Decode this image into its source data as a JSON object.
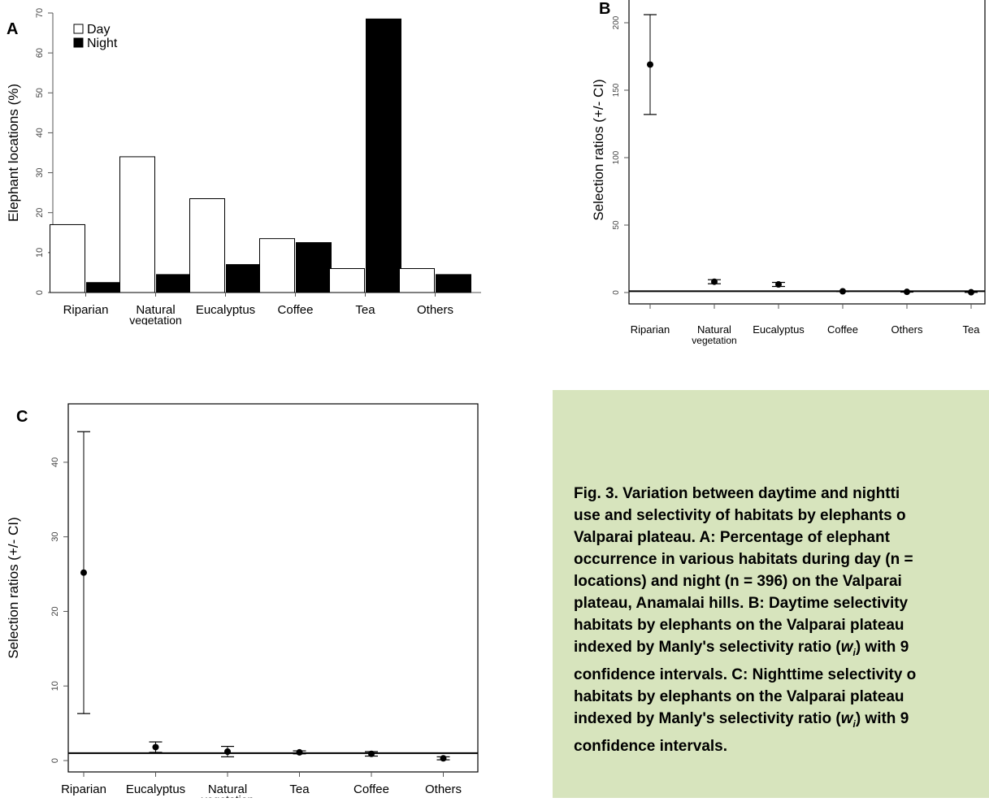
{
  "panels": [
    {
      "label": "A",
      "chart_data": {
        "type": "bar",
        "ylabel": "Elephant locations (%)",
        "xlabel": "",
        "ylim": [
          0,
          70
        ],
        "yticks": [
          0,
          10,
          20,
          30,
          40,
          50,
          60,
          70
        ],
        "categories": [
          "Riparian",
          "Natural vegetation",
          "Eucalyptus",
          "Coffee",
          "Tea",
          "Others"
        ],
        "category_lines": [
          [
            "Riparian"
          ],
          [
            "Natural",
            "vegetation"
          ],
          [
            "Eucalyptus"
          ],
          [
            "Coffee"
          ],
          [
            "Tea"
          ],
          [
            "Others"
          ]
        ],
        "series": [
          {
            "name": "Day",
            "color": "#ffffff",
            "values": [
              17,
              34,
              23.5,
              13.5,
              6,
              6
            ]
          },
          {
            "name": "Night",
            "color": "#000000",
            "values": [
              2.5,
              4.5,
              7,
              12.5,
              68.5,
              4.5
            ]
          }
        ],
        "legend": "top-left"
      }
    },
    {
      "label": "B",
      "chart_data": {
        "type": "scatter",
        "style": "point-with-error-bars",
        "ylabel": "Selection ratios (+/- CI)",
        "ylim": [
          0,
          200
        ],
        "yticks": [
          0,
          50,
          100,
          150,
          200
        ],
        "reference_line": 1,
        "categories": [
          "Riparian",
          "Natural vegetation",
          "Eucalyptus",
          "Coffee",
          "Others",
          "Tea"
        ],
        "category_lines": [
          [
            "Riparian"
          ],
          [
            "Natural",
            "vegetation"
          ],
          [
            "Eucalyptus"
          ],
          [
            "Coffee"
          ],
          [
            "Others"
          ],
          [
            "Tea"
          ]
        ],
        "values": [
          169,
          8,
          6,
          0.9,
          0.5,
          0.2
        ],
        "ci_low": [
          132,
          6.5,
          4.5,
          0.7,
          0.3,
          0.1
        ],
        "ci_high": [
          206,
          9.5,
          7.5,
          1.1,
          0.7,
          0.3
        ]
      }
    },
    {
      "label": "C",
      "chart_data": {
        "type": "scatter",
        "style": "point-with-error-bars",
        "ylabel": "Selection ratios (+/- CI)",
        "ylim": [
          0,
          45
        ],
        "yticks": [
          0,
          10,
          20,
          30,
          40
        ],
        "reference_line": 1,
        "categories": [
          "Riparian",
          "Eucalyptus",
          "Natural vegetation",
          "Tea",
          "Coffee",
          "Others"
        ],
        "category_lines": [
          [
            "Riparian"
          ],
          [
            "Eucalyptus"
          ],
          [
            "Natural",
            "vegetation"
          ],
          [
            "Tea"
          ],
          [
            "Coffee"
          ],
          [
            "Others"
          ]
        ],
        "values": [
          25.2,
          1.8,
          1.2,
          1.1,
          0.9,
          0.3
        ],
        "ci_low": [
          6.3,
          1.1,
          0.5,
          0.9,
          0.6,
          0.1
        ],
        "ci_high": [
          44.1,
          2.5,
          1.9,
          1.3,
          1.2,
          0.5
        ]
      }
    }
  ],
  "caption": {
    "lines": [
      "Fig. 3. Variation between daytime and nightti",
      "use and selectivity of habitats by elephants o",
      "Valparai plateau. A: Percentage of elephant",
      "occurrence in various habitats during day (n =",
      "locations) and night (n = 396) on the Valparai",
      "plateau, Anamalai hills. B: Daytime selectivity",
      "habitats by elephants on the Valparai plateau",
      "indexed by Manly's selectivity ratio (w_i) with 9",
      "confidence intervals. C: Nighttime selectivity o",
      "habitats by elephants on the Valparai plateau",
      "indexed by Manly's selectivity ratio (w_i) with 9",
      "confidence intervals."
    ]
  },
  "colors": {
    "caption_background": "#d7e4bd",
    "axis": "#555555"
  }
}
